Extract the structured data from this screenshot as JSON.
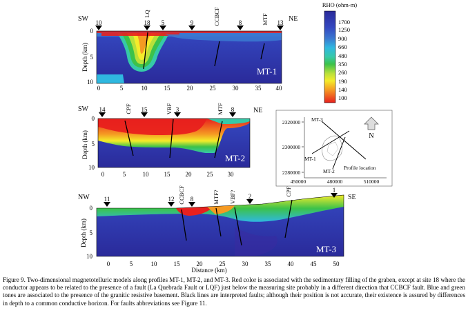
{
  "caption": "Figure 9. Two-dimensional magnetotelluric models along profiles MT-1, MT-2, and MT-3. Red color is associated with the sedimentary filling of the graben, except at site 18 where the conductor appears to be related to the presence of a fault (La Quebrada Fault or LQF) just below the measuring site probably in a different direction that CCBCF fault. Blue and green tones are associated to the presence of the granitic resistive basement. Black lines are interpreted faults; although their position is not accurate, their existence is assured by differences in depth to a common conductive horizon. For faults abbreviations see Figure 11.",
  "legend": {
    "title": "RHO (ohm-m)",
    "levels": [
      "1700",
      "1250",
      "900",
      "660",
      "480",
      "350",
      "260",
      "190",
      "140",
      "100"
    ],
    "colors": {
      "deep_blue": "#2a2a9a",
      "blue": "#3448c0",
      "mid_blue": "#3a78d0",
      "cyan": "#2fb8e0",
      "teal": "#36c9a8",
      "green": "#3cc24a",
      "lime": "#b8e03a",
      "yellow": "#f4ec2a",
      "orange": "#f59a22",
      "red": "#e8201e"
    }
  },
  "panels": [
    {
      "id": "MT-1",
      "label": "MT-1",
      "dir_left": "SW",
      "dir_right": "NE",
      "depth_label": "Depth (km)",
      "depth_ticks": [
        "0",
        "5",
        "10"
      ],
      "distance_ticks": [
        "0",
        "5",
        "10",
        "15",
        "20",
        "25",
        "30",
        "35",
        "40"
      ],
      "sites": [
        "10",
        "18",
        "5",
        "9",
        "8",
        "13"
      ],
      "faults": [
        "LQ",
        "CCBCF",
        "MTF"
      ]
    },
    {
      "id": "MT-2",
      "label": "MT-2",
      "dir_left": "SW",
      "dir_right": "NE",
      "depth_label": "Depth (km)",
      "depth_ticks": [
        "0",
        "5",
        "10"
      ],
      "distance_ticks": [
        "0",
        "5",
        "10",
        "15",
        "20",
        "25",
        "30"
      ],
      "sites": [
        "14",
        "15",
        "3",
        "8"
      ],
      "faults": [
        "CPF",
        "VBF",
        "MTF"
      ]
    },
    {
      "id": "MT-3",
      "label": "MT-3",
      "dir_left": "NW",
      "dir_right": "SE",
      "depth_label": "Depth (km)",
      "depth_ticks": [
        "0",
        "5",
        "10"
      ],
      "distance_ticks": [
        "0",
        "5",
        "10",
        "15",
        "20",
        "25",
        "30",
        "35",
        "40",
        "45",
        "50"
      ],
      "distance_label": "Distance (km)",
      "sites": [
        "11",
        "12",
        "8",
        "2",
        "1"
      ],
      "faults": [
        "CCBCF",
        "MTF?",
        "VBF?",
        "CPF"
      ]
    }
  ],
  "location_map": {
    "y_ticks": [
      "2320000",
      "2300000",
      "2280000"
    ],
    "x_ticks": [
      "450000",
      "480000",
      "510000"
    ],
    "north": "N",
    "profiles": [
      "MT-3",
      "MT-1",
      "MT-2"
    ],
    "title": "Profile location"
  }
}
